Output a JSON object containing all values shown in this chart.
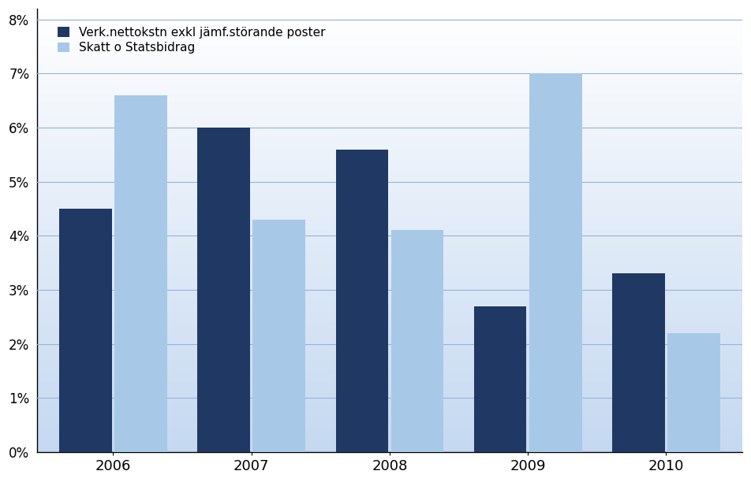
{
  "years": [
    "2006",
    "2007",
    "2008",
    "2009",
    "2010"
  ],
  "verk_values": [
    0.045,
    0.06,
    0.056,
    0.027,
    0.033
  ],
  "skatt_values": [
    0.066,
    0.043,
    0.041,
    0.07,
    0.022
  ],
  "verk_color": "#1F3864",
  "skatt_color": "#A8C8E8",
  "legend_labels": [
    "Verk.nettokstn exkl jämf.störande poster",
    "Skatt o Statsbidrag"
  ],
  "ylim": [
    0,
    0.082
  ],
  "yticks": [
    0.0,
    0.01,
    0.02,
    0.03,
    0.04,
    0.05,
    0.06,
    0.07,
    0.08
  ],
  "background_color": "#FFFFFF",
  "gradient_top": "#FFFFFF",
  "gradient_bottom": "#C5D9F1",
  "grid_color": "#95B3D7",
  "bar_width": 0.38
}
